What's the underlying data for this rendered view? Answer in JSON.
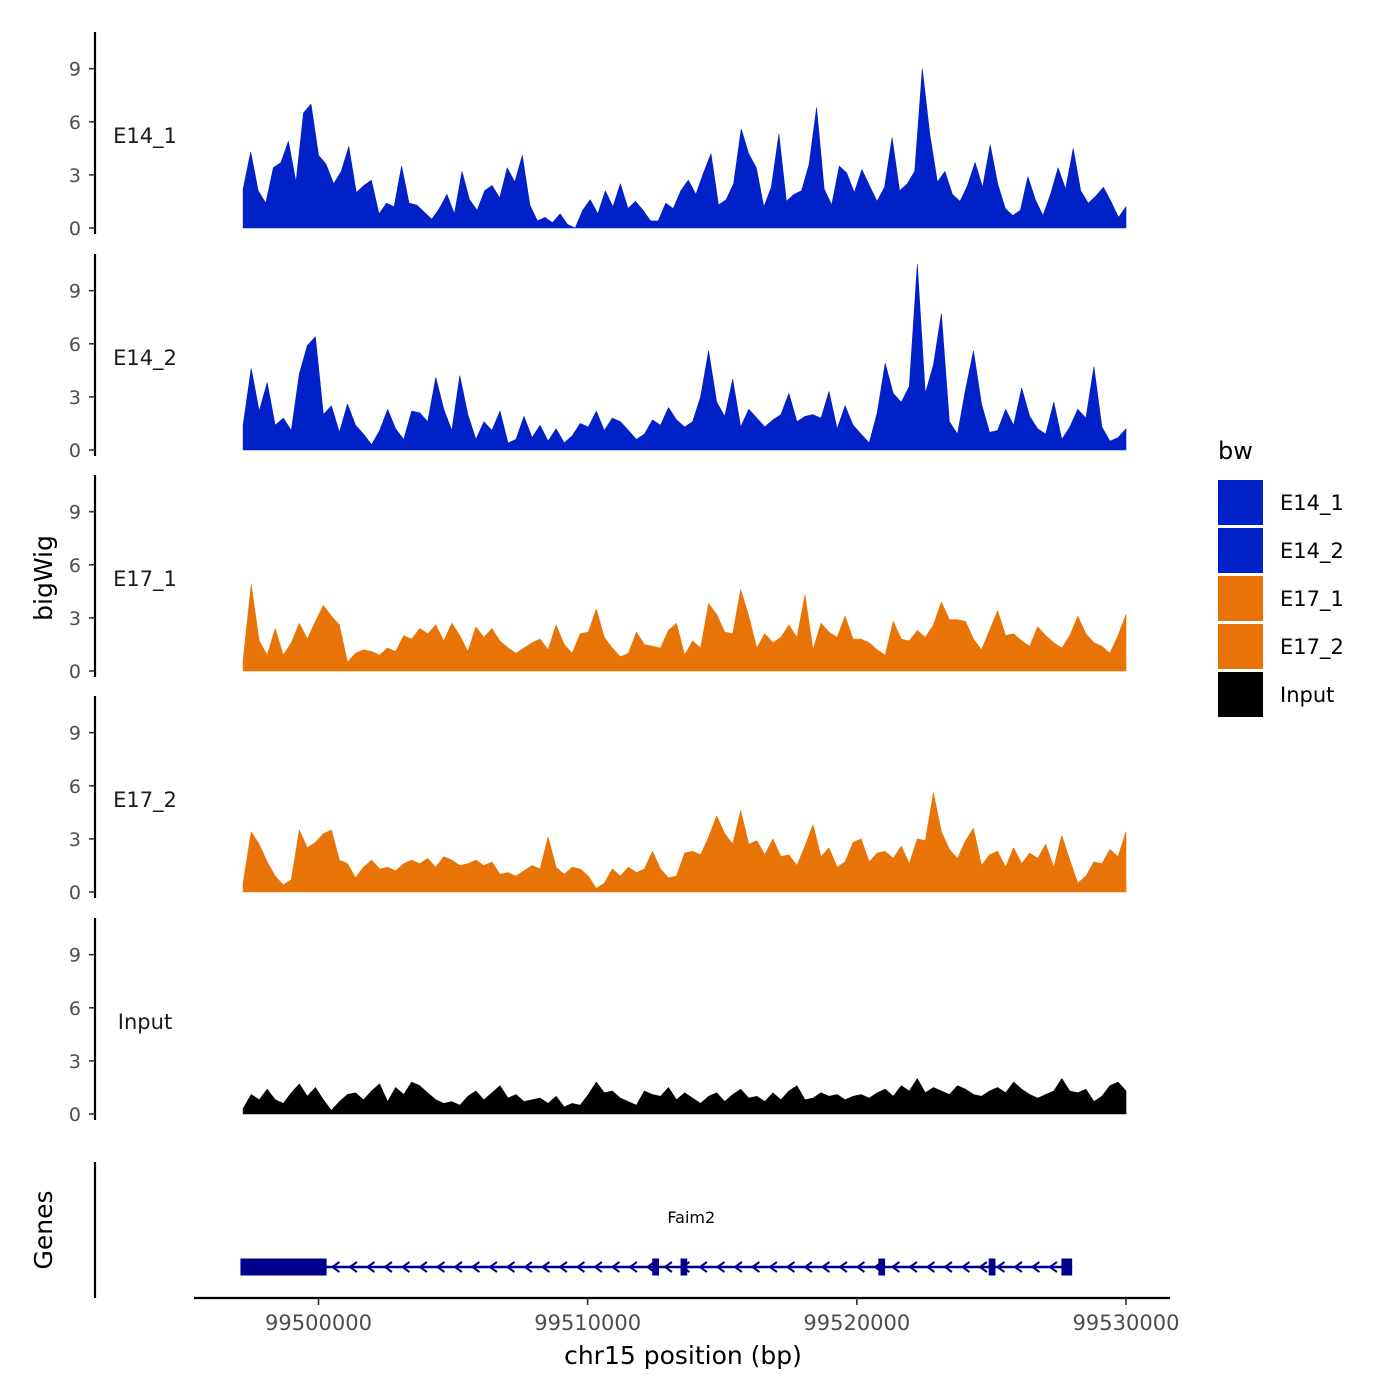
{
  "chart_data": {
    "type": "area",
    "ylabel": "bigWig",
    "xlabel": "chr15 position (bp)",
    "genes_label": "Genes",
    "xlim": [
      99495700,
      99531800
    ],
    "ylim": [
      0,
      11
    ],
    "yticks": [
      "0",
      "3",
      "6",
      "9"
    ],
    "xticks": [
      {
        "value": 99500000,
        "label": "99500000"
      },
      {
        "value": 99510000,
        "label": "99510000"
      },
      {
        "value": 99520000,
        "label": "99520000"
      },
      {
        "value": 99530000,
        "label": "99530000"
      }
    ],
    "legend": {
      "title": "bw",
      "position": "right",
      "entries": [
        {
          "label": "E14_1",
          "color": "#0020C8"
        },
        {
          "label": "E14_2",
          "color": "#0020C8"
        },
        {
          "label": "E17_1",
          "color": "#E87408"
        },
        {
          "label": "E17_2",
          "color": "#E87408"
        },
        {
          "label": "Input",
          "color": "#000000"
        }
      ]
    },
    "series": [
      {
        "name": "E14_1",
        "color": "#0020C8",
        "x_start": 99497200,
        "x_end": 99530000,
        "values": [
          2.2,
          4.3,
          2.1,
          1.4,
          3.4,
          3.7,
          4.9,
          2.6,
          6.5,
          7.0,
          4.1,
          3.6,
          2.5,
          3.2,
          4.6,
          2.0,
          2.4,
          2.7,
          0.8,
          1.4,
          1.2,
          3.5,
          1.4,
          1.3,
          0.9,
          0.5,
          1.1,
          1.9,
          0.8,
          3.2,
          1.6,
          1.0,
          2.1,
          2.4,
          1.7,
          3.4,
          2.6,
          4.1,
          1.3,
          0.4,
          0.6,
          0.3,
          0.8,
          0.2,
          0.0,
          1.0,
          1.6,
          0.8,
          2.1,
          1.2,
          2.5,
          1.1,
          1.5,
          1.0,
          0.4,
          0.4,
          1.4,
          1.1,
          2.1,
          2.7,
          1.9,
          3.1,
          4.2,
          1.3,
          1.6,
          2.5,
          5.6,
          4.2,
          3.4,
          1.2,
          2.3,
          5.3,
          1.5,
          1.9,
          2.1,
          3.6,
          6.8,
          2.2,
          1.3,
          3.5,
          3.1,
          2.0,
          3.3,
          2.4,
          1.5,
          2.3,
          5.1,
          2.1,
          2.5,
          3.2,
          9.0,
          5.3,
          2.6,
          3.2,
          1.9,
          1.5,
          2.4,
          3.7,
          2.3,
          4.7,
          2.5,
          1.1,
          0.7,
          1.0,
          2.9,
          1.6,
          0.7,
          1.9,
          3.4,
          2.2,
          4.5,
          2.1,
          1.4,
          1.8,
          2.3,
          1.5,
          0.6,
          1.2
        ]
      },
      {
        "name": "E14_2",
        "color": "#0020C8",
        "x_start": 99497200,
        "x_end": 99530000,
        "values": [
          1.4,
          4.6,
          2.2,
          3.8,
          1.4,
          1.8,
          1.1,
          4.3,
          5.9,
          6.4,
          2.0,
          2.5,
          1.0,
          2.6,
          1.4,
          0.9,
          0.3,
          1.1,
          2.3,
          1.2,
          0.6,
          2.2,
          2.1,
          1.6,
          4.1,
          2.3,
          1.1,
          4.2,
          2.0,
          0.6,
          1.6,
          1.1,
          2.2,
          0.4,
          0.6,
          1.9,
          0.7,
          1.4,
          0.5,
          1.2,
          0.4,
          0.8,
          1.5,
          1.3,
          2.2,
          1.1,
          1.8,
          1.6,
          1.1,
          0.6,
          0.9,
          1.7,
          1.4,
          2.4,
          1.7,
          1.3,
          1.6,
          3.0,
          5.6,
          2.7,
          1.9,
          4.0,
          1.3,
          2.3,
          1.8,
          1.3,
          1.7,
          2.0,
          3.2,
          1.6,
          1.9,
          2.0,
          1.8,
          3.3,
          1.2,
          2.5,
          1.4,
          0.9,
          0.4,
          2.1,
          4.9,
          3.2,
          2.7,
          3.6,
          10.5,
          3.2,
          4.8,
          7.7,
          1.6,
          0.9,
          3.4,
          5.6,
          2.6,
          1.0,
          1.1,
          2.3,
          1.4,
          3.5,
          1.9,
          1.2,
          0.9,
          2.7,
          0.6,
          1.3,
          2.3,
          1.8,
          4.7,
          1.3,
          0.5,
          0.7,
          1.2
        ]
      },
      {
        "name": "E17_1",
        "color": "#E87408",
        "x_start": 99497200,
        "x_end": 99530000,
        "values": [
          0.6,
          4.9,
          1.7,
          0.9,
          2.4,
          0.9,
          1.6,
          2.7,
          1.8,
          2.8,
          3.7,
          3.1,
          2.6,
          0.5,
          1.0,
          1.2,
          1.1,
          0.9,
          1.3,
          1.1,
          2.0,
          1.8,
          2.4,
          2.1,
          2.6,
          1.7,
          2.7,
          2.0,
          1.1,
          2.5,
          1.9,
          2.4,
          1.7,
          1.3,
          1.0,
          1.3,
          1.6,
          1.8,
          1.2,
          2.6,
          1.5,
          1.0,
          2.1,
          2.2,
          3.5,
          1.9,
          1.3,
          0.8,
          1.0,
          2.2,
          1.5,
          1.4,
          1.3,
          2.3,
          2.7,
          0.9,
          1.7,
          1.3,
          3.8,
          3.2,
          2.2,
          2.1,
          4.6,
          3.1,
          1.3,
          2.1,
          1.6,
          1.9,
          2.6,
          1.9,
          4.3,
          1.2,
          2.7,
          2.2,
          1.9,
          3.1,
          1.8,
          1.8,
          1.6,
          1.2,
          0.9,
          2.8,
          1.8,
          1.7,
          2.3,
          1.9,
          2.6,
          3.9,
          2.9,
          2.9,
          2.8,
          1.8,
          1.2,
          2.3,
          3.4,
          2.0,
          2.1,
          1.7,
          1.4,
          2.5,
          2.0,
          1.6,
          1.3,
          2.0,
          3.1,
          2.1,
          1.6,
          1.4,
          1.0,
          2.0,
          3.2
        ]
      },
      {
        "name": "E17_2",
        "color": "#E87408",
        "x_start": 99497200,
        "x_end": 99530000,
        "values": [
          0.5,
          3.4,
          2.7,
          1.7,
          0.9,
          0.4,
          0.7,
          3.5,
          2.5,
          2.8,
          3.3,
          3.5,
          1.8,
          1.6,
          0.8,
          1.4,
          1.8,
          1.3,
          1.4,
          1.2,
          1.6,
          1.8,
          1.6,
          1.9,
          1.4,
          2.0,
          1.8,
          1.5,
          1.6,
          1.8,
          1.5,
          1.7,
          1.0,
          1.1,
          0.9,
          1.2,
          1.5,
          1.3,
          3.1,
          1.4,
          1.0,
          1.4,
          1.3,
          0.9,
          0.2,
          0.5,
          1.3,
          0.9,
          1.4,
          1.1,
          1.3,
          2.3,
          1.3,
          0.8,
          0.9,
          2.2,
          2.3,
          2.1,
          3.1,
          4.3,
          3.3,
          2.7,
          4.6,
          2.7,
          2.9,
          2.1,
          3.0,
          2.0,
          2.1,
          1.5,
          2.6,
          3.8,
          2.0,
          2.5,
          1.4,
          1.7,
          2.8,
          3.0,
          1.7,
          2.2,
          2.3,
          1.9,
          2.6,
          1.6,
          3.0,
          2.9,
          5.6,
          3.4,
          2.4,
          1.9,
          2.9,
          3.6,
          1.5,
          2.1,
          2.3,
          1.4,
          2.5,
          1.6,
          2.2,
          1.9,
          2.7,
          1.4,
          3.2,
          1.8,
          0.5,
          0.9,
          1.7,
          1.6,
          2.4,
          2.0,
          3.4
        ]
      },
      {
        "name": "Input",
        "color": "#000000",
        "x_start": 99497200,
        "x_end": 99530000,
        "values": [
          0.3,
          1.1,
          0.8,
          1.4,
          0.8,
          0.6,
          1.2,
          1.7,
          1.0,
          1.5,
          0.8,
          0.2,
          0.7,
          1.1,
          1.2,
          0.8,
          1.3,
          1.7,
          0.7,
          1.5,
          1.1,
          1.8,
          1.6,
          1.2,
          0.8,
          0.6,
          0.7,
          0.5,
          1.0,
          1.3,
          0.8,
          1.2,
          1.6,
          0.9,
          1.1,
          0.7,
          0.8,
          0.9,
          0.6,
          1.0,
          0.4,
          0.6,
          0.5,
          1.1,
          1.8,
          1.2,
          1.3,
          0.9,
          0.7,
          0.5,
          1.3,
          1.1,
          1.0,
          1.5,
          0.8,
          1.2,
          0.9,
          0.6,
          1.0,
          1.2,
          0.7,
          1.1,
          1.4,
          0.9,
          1.0,
          0.7,
          1.2,
          0.8,
          1.3,
          1.6,
          0.8,
          0.9,
          1.2,
          1.0,
          1.1,
          0.8,
          1.0,
          1.1,
          0.9,
          1.2,
          1.4,
          1.0,
          1.6,
          1.3,
          2.0,
          1.2,
          1.5,
          1.3,
          1.1,
          1.6,
          1.4,
          1.1,
          1.0,
          1.3,
          1.5,
          1.2,
          1.8,
          1.4,
          1.1,
          0.9,
          1.1,
          1.3,
          2.0,
          1.3,
          1.2,
          1.4,
          0.7,
          1.0,
          1.6,
          1.8,
          1.3
        ]
      }
    ],
    "gene": {
      "name": "Faim2",
      "strand": "-",
      "start": 99497100,
      "end": 99528000,
      "exons": [
        {
          "start": 99497100,
          "end": 99500300
        },
        {
          "start": 99512400,
          "end": 99512650
        },
        {
          "start": 99513450,
          "end": 99513700
        },
        {
          "start": 99520800,
          "end": 99521050
        },
        {
          "start": 99524900,
          "end": 99525150
        },
        {
          "start": 99527600,
          "end": 99528000
        }
      ]
    }
  }
}
